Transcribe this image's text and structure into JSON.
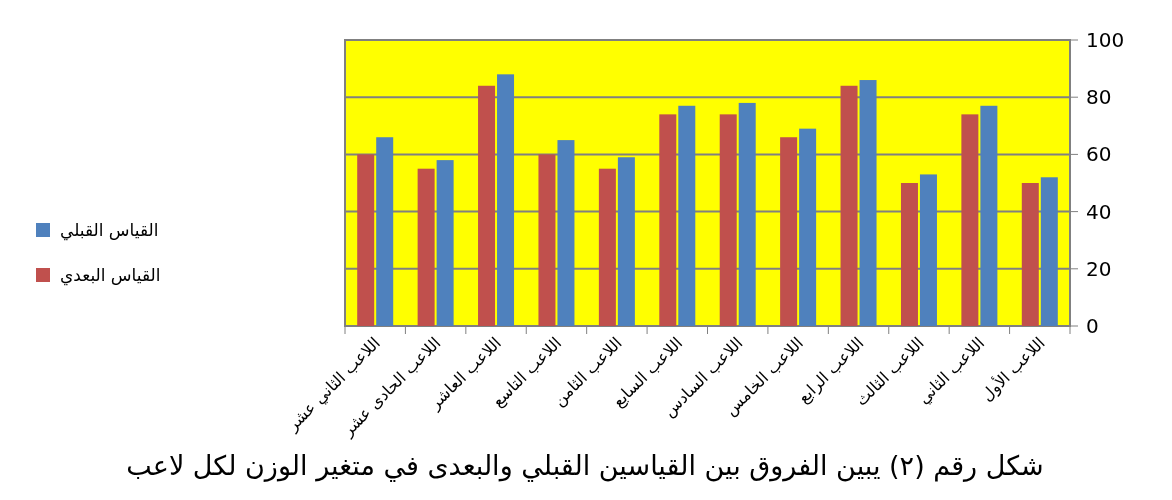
{
  "chart_data": {
    "type": "bar",
    "title": "شكل رقم (٢) يبين الفروق بين القياسين القبلي والبعدى في متغير الوزن لكل لاعب",
    "categories": [
      "اللاعب الثاني عشر",
      "اللاعب الحادى عشر",
      "اللاعب العاشر",
      "اللاعب التاسع",
      "اللاعب الثامن",
      "اللاعب السابع",
      "اللاعب السادس",
      "اللاعب الخامس",
      "اللاعب الرابع",
      "اللاعب الثالث",
      "اللاعب الثاني",
      "اللاعب الأول"
    ],
    "series": [
      {
        "name": "القياس البعدي",
        "color": "#c0504d",
        "values": [
          60,
          55,
          84,
          60,
          55,
          74,
          74,
          66,
          84,
          50,
          74,
          50
        ]
      },
      {
        "name": "القياس القبلي",
        "color": "#4f81bd",
        "values": [
          66,
          58,
          88,
          65,
          59,
          77,
          78,
          69,
          86,
          53,
          77,
          52
        ]
      }
    ],
    "ylim": [
      0,
      100
    ],
    "yticks": [
      0,
      20,
      40,
      60,
      80,
      100
    ],
    "grid": "y",
    "legend": "left"
  }
}
